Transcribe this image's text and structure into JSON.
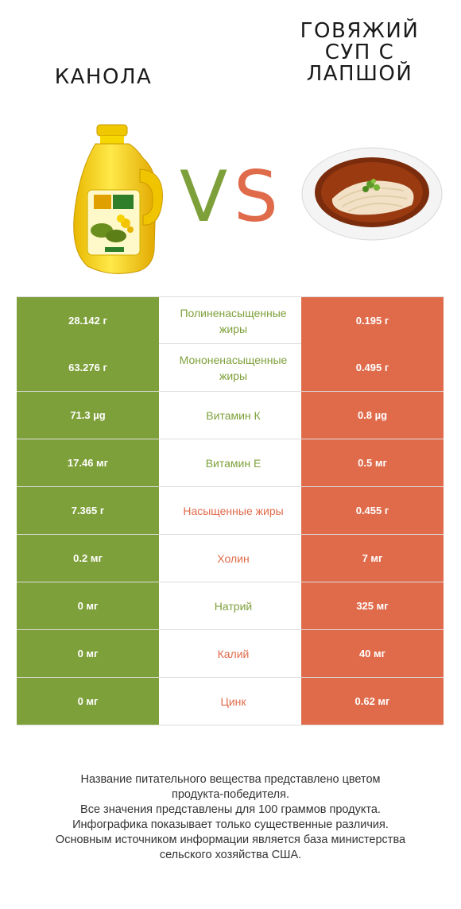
{
  "header": {
    "left_title": "КАНОЛА",
    "right_title_lines": [
      "ГОВЯЖИЙ",
      "СУП С",
      "ЛАПШОЙ"
    ],
    "vs_letters": [
      "V",
      "S"
    ]
  },
  "colors": {
    "left_winner": "#7ea03a",
    "right_winner": "#e06b4b"
  },
  "images": {
    "left": "canola-oil-bottle",
    "right": "beef-noodle-soup-bowl"
  },
  "rows": [
    {
      "left": "28.142 г",
      "nutrient": "Полиненасыщенные жиры",
      "right": "0.195 г",
      "winner": "left"
    },
    {
      "left": "63.276 г",
      "nutrient": "Мононенасыщенные жиры",
      "right": "0.495 г",
      "winner": "left"
    },
    {
      "left": "71.3 µg",
      "nutrient": "Витамин К",
      "right": "0.8 µg",
      "winner": "left"
    },
    {
      "left": "17.46 мг",
      "nutrient": "Витамин Е",
      "right": "0.5 мг",
      "winner": "left"
    },
    {
      "left": "7.365 г",
      "nutrient": "Насыщенные жиры",
      "right": "0.455 г",
      "winner": "right"
    },
    {
      "left": "0.2 мг",
      "nutrient": "Холин",
      "right": "7 мг",
      "winner": "right"
    },
    {
      "left": "0 мг",
      "nutrient": "Натрий",
      "right": "325 мг",
      "winner": "left"
    },
    {
      "left": "0 мг",
      "nutrient": "Калий",
      "right": "40 мг",
      "winner": "right"
    },
    {
      "left": "0 мг",
      "nutrient": "Цинк",
      "right": "0.62 мг",
      "winner": "right"
    }
  ],
  "footer_lines": [
    "Название питательного вещества представлено цветом",
    "продукта-победителя.",
    "Все значения представлены для 100 граммов продукта.",
    "Инфографика показывает только существенные различия.",
    "Основным источником информации является база министерства",
    "сельского хозяйства США."
  ]
}
